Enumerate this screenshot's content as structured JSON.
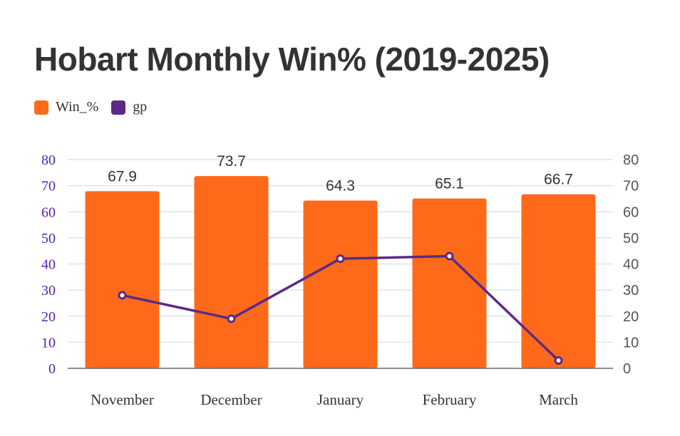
{
  "chart_data": {
    "type": "bar",
    "title": "Hobart Monthly Win% (2019-2025)",
    "categories": [
      "November",
      "December",
      "January",
      "February",
      "March"
    ],
    "series": [
      {
        "name": "Win_%",
        "type": "bar",
        "axis": "left",
        "color": "#ff6a1a",
        "values": [
          67.9,
          73.7,
          64.3,
          65.1,
          66.7
        ]
      },
      {
        "name": "gp",
        "type": "line",
        "axis": "right",
        "color": "#5b2a86",
        "values": [
          28,
          19,
          42,
          43,
          3
        ]
      }
    ],
    "y_left": {
      "ticks": [
        0,
        10,
        20,
        30,
        40,
        50,
        60,
        70,
        80
      ],
      "ylim": [
        0,
        80
      ]
    },
    "y_right": {
      "ticks": [
        0,
        10,
        20,
        30,
        40,
        50,
        60,
        70,
        80
      ],
      "ylim": [
        0,
        80
      ]
    },
    "grid": true,
    "legend_position": "top-left",
    "bar_labels": [
      "67.9",
      "73.7",
      "64.3",
      "65.1",
      "66.7"
    ]
  }
}
